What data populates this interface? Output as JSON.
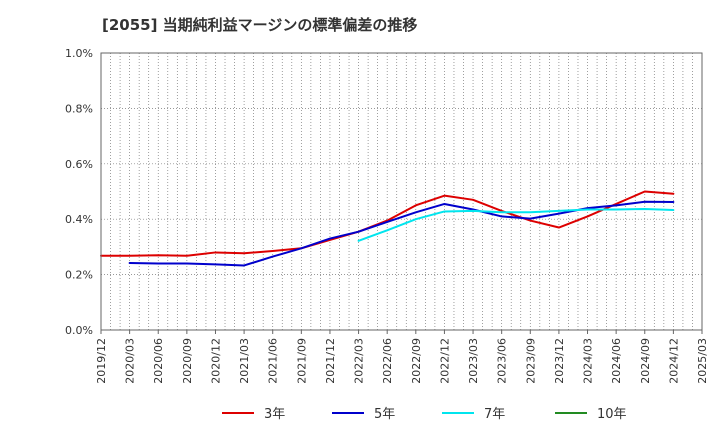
{
  "chart_data": {
    "type": "line",
    "title": "[2055]  当期純利益マージンの標準偏差の推移",
    "xlabel": "",
    "ylabel": "",
    "ylim": [
      0,
      0.01
    ],
    "y_ticks": [
      "0.0%",
      "0.2%",
      "0.4%",
      "0.6%",
      "0.8%",
      "1.0%"
    ],
    "y_tick_values": [
      0,
      0.002,
      0.004,
      0.006,
      0.008,
      0.01
    ],
    "x_ticks": [
      "2019/12",
      "2020/03",
      "2020/06",
      "2020/09",
      "2020/12",
      "2021/03",
      "2021/06",
      "2021/09",
      "2021/12",
      "2022/03",
      "2022/06",
      "2022/09",
      "2022/12",
      "2023/03",
      "2023/06",
      "2023/09",
      "2023/12",
      "2024/03",
      "2024/06",
      "2024/09",
      "2024/12",
      "2025/03"
    ],
    "grid": true,
    "legend_position": "bottom",
    "series": [
      {
        "name": "3年",
        "color": "#dd0000",
        "x": [
          "2019/12",
          "2020/03",
          "2020/06",
          "2020/09",
          "2020/12",
          "2021/03",
          "2021/06",
          "2021/09",
          "2021/12",
          "2022/03",
          "2022/06",
          "2022/09",
          "2022/12",
          "2023/03",
          "2023/06",
          "2023/09",
          "2023/12",
          "2024/03",
          "2024/06",
          "2024/09",
          "2024/12"
        ],
        "values": [
          0.00268,
          0.00268,
          0.0027,
          0.00268,
          0.0028,
          0.00277,
          0.00285,
          0.00295,
          0.00325,
          0.00355,
          0.00395,
          0.0045,
          0.00485,
          0.0047,
          0.0043,
          0.00395,
          0.0037,
          0.0041,
          0.00455,
          0.005,
          0.00492
        ]
      },
      {
        "name": "5年",
        "color": "#0000cc",
        "x": [
          "2020/03",
          "2020/06",
          "2020/09",
          "2020/12",
          "2021/03",
          "2021/06",
          "2021/09",
          "2021/12",
          "2022/03",
          "2022/06",
          "2022/09",
          "2022/12",
          "2023/03",
          "2023/06",
          "2023/09",
          "2023/12",
          "2024/03",
          "2024/06",
          "2024/09",
          "2024/12"
        ],
        "values": [
          0.00242,
          0.0024,
          0.0024,
          0.00237,
          0.00233,
          0.00265,
          0.00295,
          0.0033,
          0.00355,
          0.0039,
          0.00425,
          0.00455,
          0.00435,
          0.0041,
          0.00402,
          0.0042,
          0.0044,
          0.0045,
          0.00463,
          0.00462
        ]
      },
      {
        "name": "7年",
        "color": "#00e5ee",
        "x": [
          "2022/03",
          "2022/06",
          "2022/09",
          "2022/12",
          "2023/03",
          "2023/06",
          "2023/09",
          "2023/12",
          "2024/03",
          "2024/06",
          "2024/09",
          "2024/12"
        ],
        "values": [
          0.00322,
          0.0036,
          0.004,
          0.00428,
          0.0043,
          0.00425,
          0.00425,
          0.0043,
          0.00435,
          0.00435,
          0.00437,
          0.00433
        ]
      },
      {
        "name": "10年",
        "color": "#228b22",
        "x": [],
        "values": []
      }
    ]
  }
}
